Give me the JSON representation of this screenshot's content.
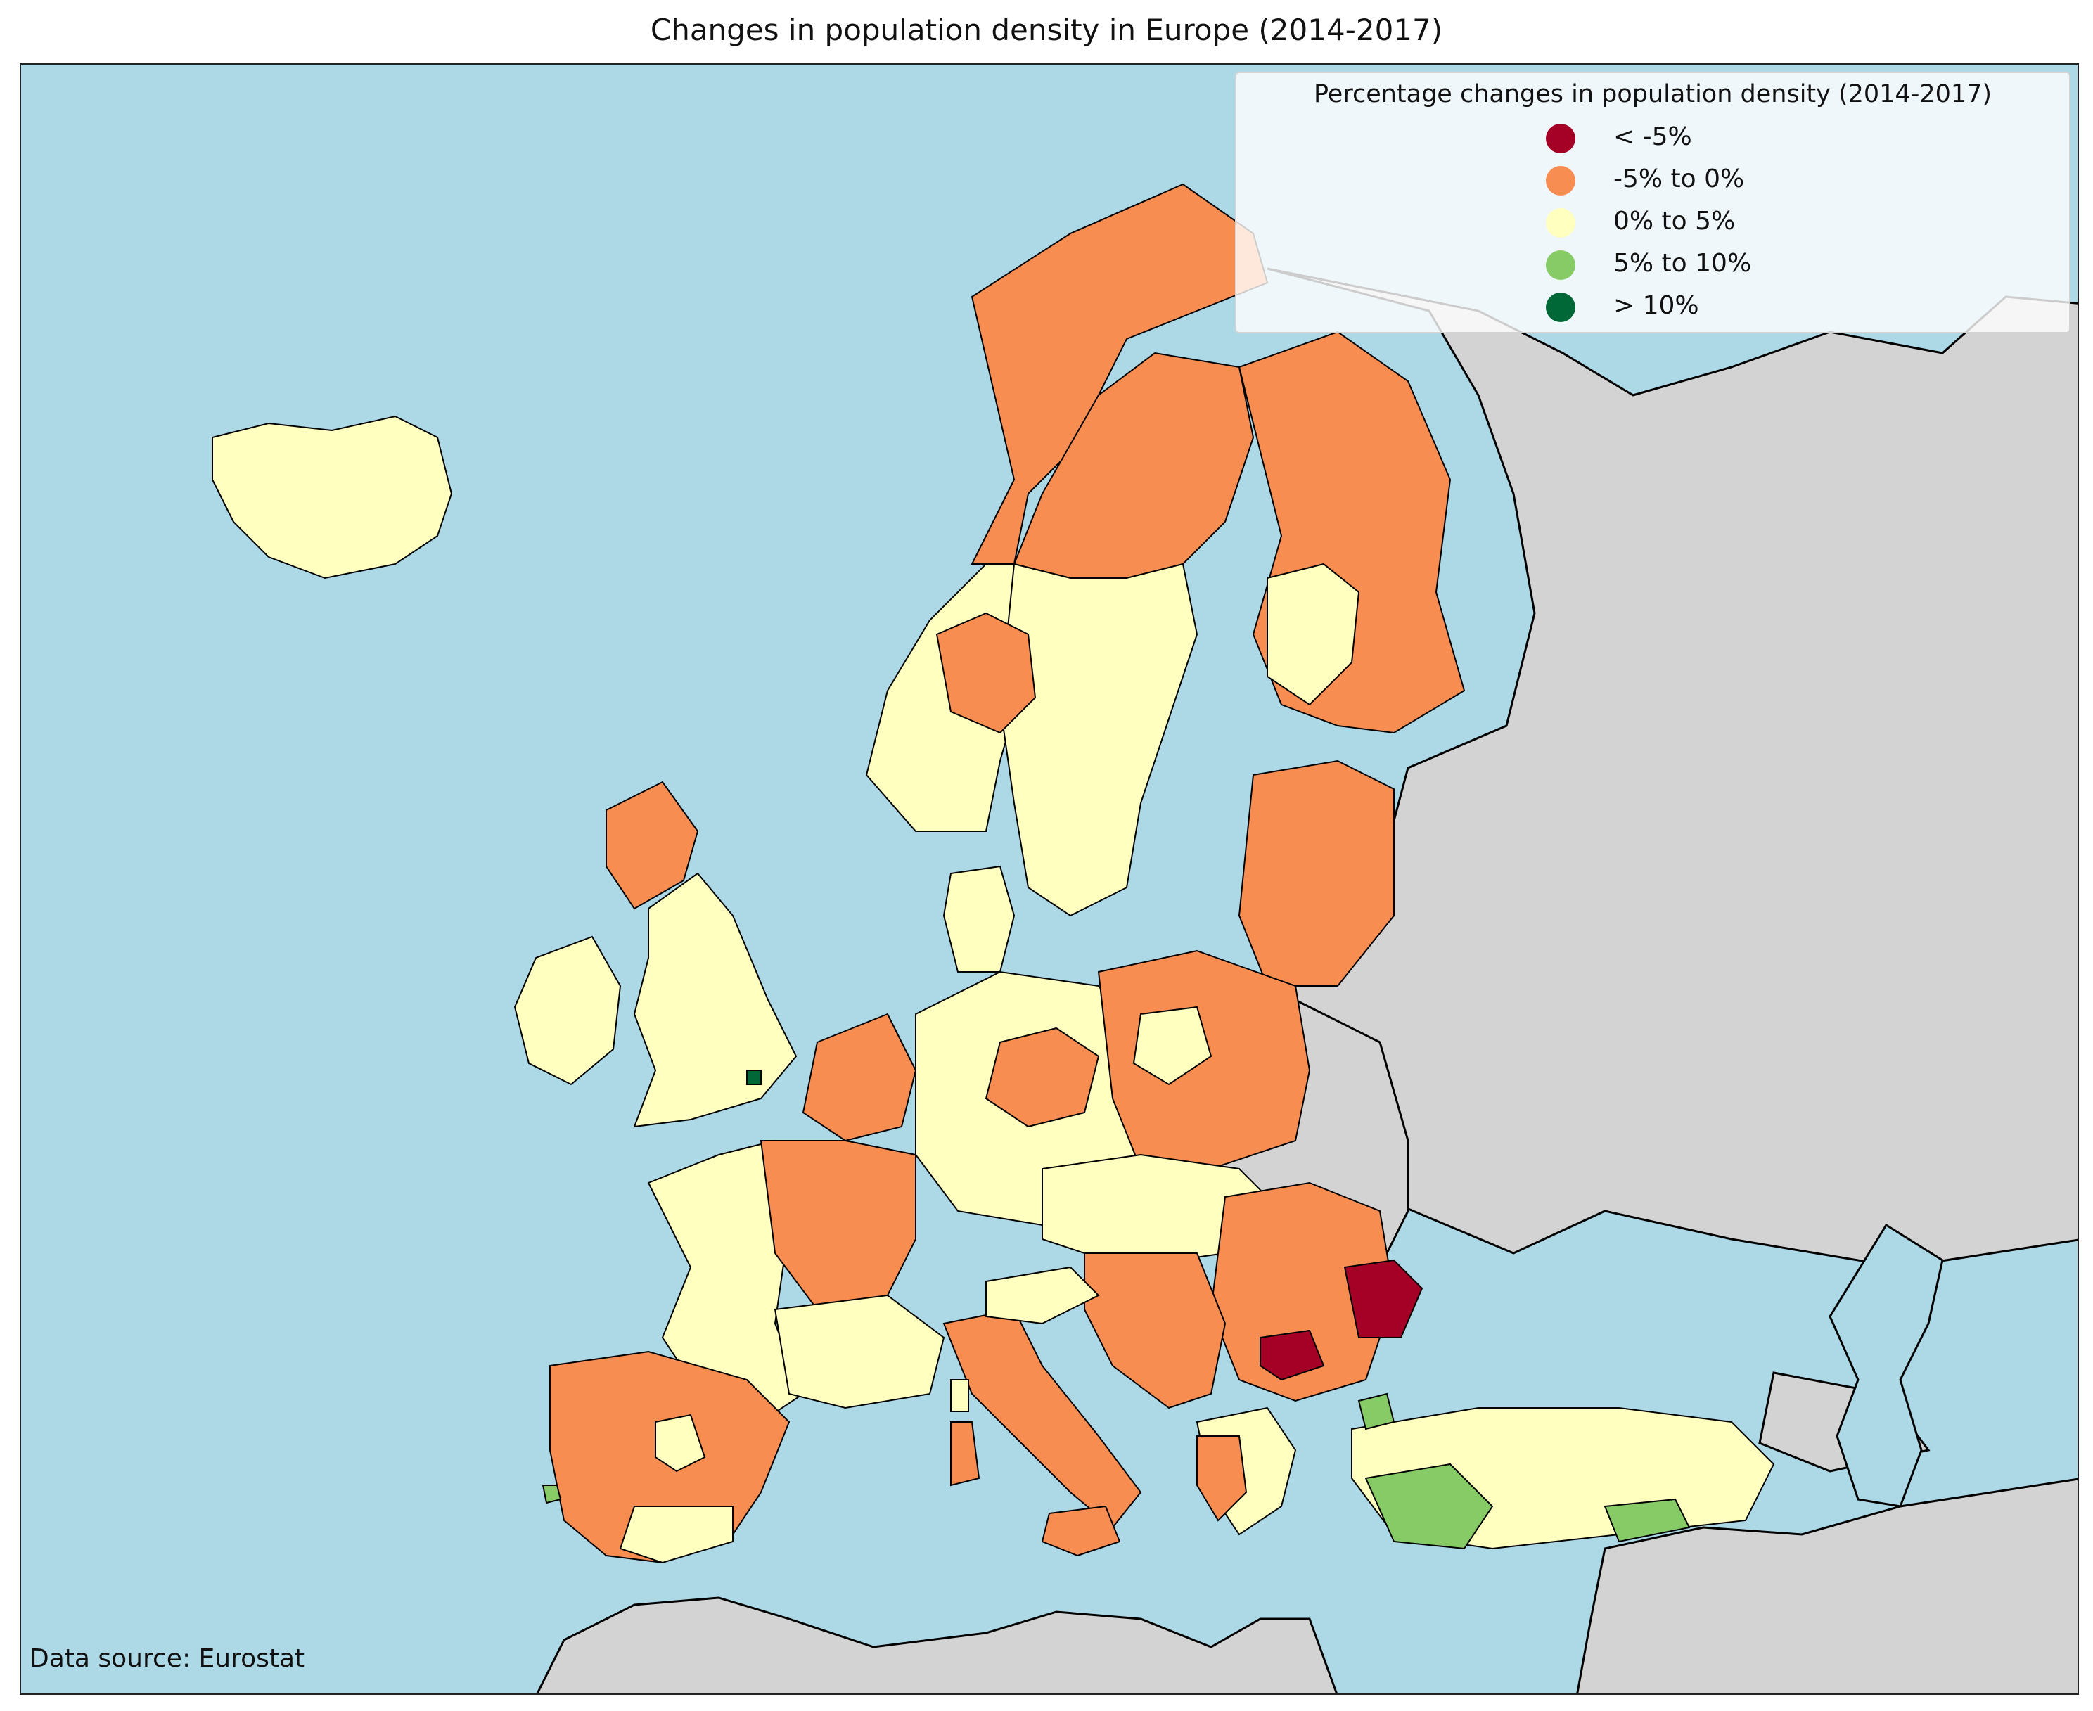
{
  "title": "Changes in population density in Europe (2014-2017)",
  "legend": {
    "title": "Percentage changes in population density (2014-2017)",
    "items": [
      {
        "label": "< -5%",
        "color": "#a50026"
      },
      {
        "label": "-5% to 0%",
        "color": "#f88d52"
      },
      {
        "label": "0% to 5%",
        "color": "#ffffc0"
      },
      {
        "label": "5% to 10%",
        "color": "#86cb66"
      },
      {
        "label": "> 10%",
        "color": "#006837"
      }
    ]
  },
  "source_note": "Data source: Eurostat",
  "colors": {
    "sea": "#add8e6",
    "land_no_data": "#d3d3d3",
    "border": "#000000"
  }
}
